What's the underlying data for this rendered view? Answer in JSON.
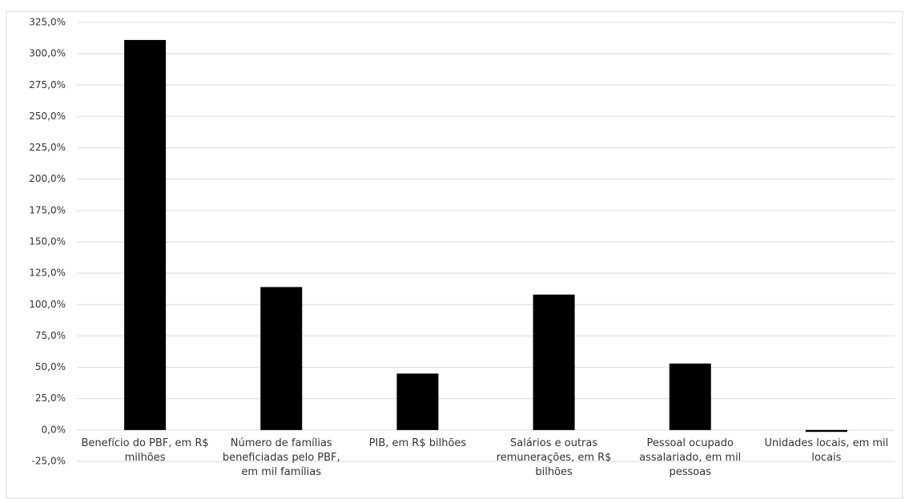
{
  "chart_data": {
    "type": "bar",
    "categories": [
      "Benefício do PBF, em R$ milhões",
      "Número de famílias beneficiadas pelo PBF, em mil famílias",
      "PIB, em R$ bilhões",
      "Salários e outras remunerações, em R$ bilhões",
      "Pessoal ocupado assalariado, em mil pessoas",
      "Unidades locais, em mil locais"
    ],
    "values": [
      311,
      114,
      45,
      108,
      53,
      -1.5
    ],
    "color": "#000000",
    "ylim": [
      -25,
      325
    ],
    "yticks": [
      {
        "value": -25,
        "label": "-25,0%"
      },
      {
        "value": 0,
        "label": "0,0%"
      },
      {
        "value": 25,
        "label": "25,0%"
      },
      {
        "value": 50,
        "label": "50,0%"
      },
      {
        "value": 75,
        "label": "75,0%"
      },
      {
        "value": 100,
        "label": "100,0%"
      },
      {
        "value": 125,
        "label": "125,0%"
      },
      {
        "value": 150,
        "label": "150,0%"
      },
      {
        "value": 175,
        "label": "175,0%"
      },
      {
        "value": 200,
        "label": "200,0%"
      },
      {
        "value": 225,
        "label": "225,0%"
      },
      {
        "value": 250,
        "label": "250,0%"
      },
      {
        "value": 275,
        "label": "275,0%"
      },
      {
        "value": 300,
        "label": "300,0%"
      },
      {
        "value": 325,
        "label": "325,0%"
      }
    ],
    "grid": true
  }
}
